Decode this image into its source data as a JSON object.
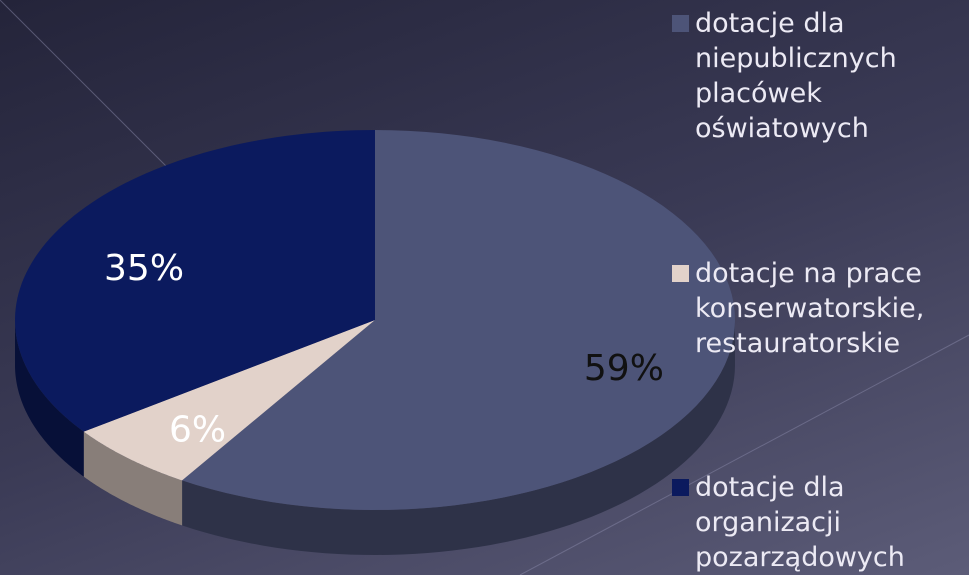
{
  "chart_data": {
    "type": "pie",
    "categories": [
      "dotacje dla niepublicznych placówek oświatowych",
      "dotacje na prace konserwatorskie, restauratorskie",
      "dotacje dla organizacji pozarządowych"
    ],
    "values": [
      59,
      6,
      35
    ],
    "value_labels": [
      "59%",
      "6%",
      "35%"
    ],
    "colors": [
      "#4d5478",
      "#e2d2ca",
      "#0b1a5e"
    ],
    "value_label_colors": [
      "#111111",
      "#ffffff",
      "#ffffff"
    ],
    "legend": "right"
  }
}
